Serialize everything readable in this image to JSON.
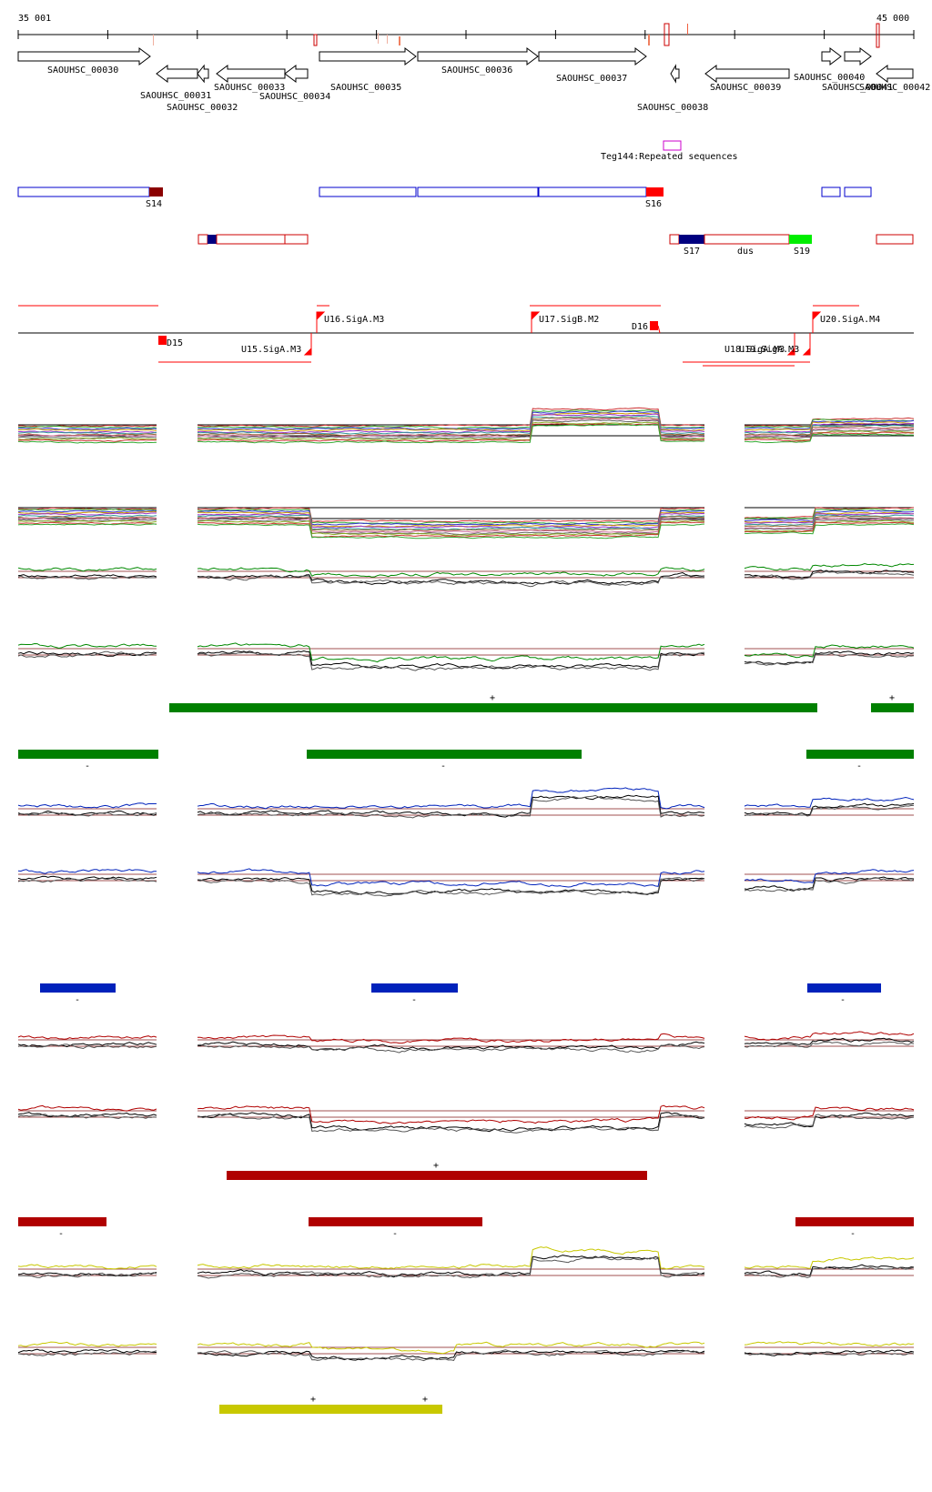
{
  "ruler": {
    "start_label": "35 001",
    "end_label": "45 000"
  },
  "genes": [
    {
      "id": "SAOUHSC_00030",
      "strand": "+"
    },
    {
      "id": "SAOUHSC_00031",
      "strand": "-"
    },
    {
      "id": "SAOUHSC_00032",
      "strand": "-"
    },
    {
      "id": "SAOUHSC_00033",
      "strand": "-"
    },
    {
      "id": "SAOUHSC_00034",
      "strand": "-"
    },
    {
      "id": "SAOUHSC_00035",
      "strand": "+"
    },
    {
      "id": "SAOUHSC_00036",
      "strand": "+"
    },
    {
      "id": "SAOUHSC_00037",
      "strand": "+"
    },
    {
      "id": "SAOUHSC_00038",
      "strand": "-"
    },
    {
      "id": "SAOUHSC_00039",
      "strand": "-"
    },
    {
      "id": "SAOUHSC_00040",
      "strand": "+"
    },
    {
      "id": "SAOUHSC_00041",
      "strand": "+"
    },
    {
      "id": "SAOUHSC_00042",
      "strand": "-"
    }
  ],
  "repeat_feature": {
    "label": "Teg144:Repeated sequences",
    "color": "#cc00cc"
  },
  "segments_plus": [
    {
      "label": "S14",
      "color": "#8b0000"
    },
    {
      "label": "S16",
      "color": "#ff0000"
    }
  ],
  "segments_minus": [
    {
      "label": "S17",
      "color": "#000080"
    },
    {
      "label": "dus",
      "color": "#cc0000"
    },
    {
      "label": "S19",
      "color": "#00ee00"
    }
  ],
  "promoters": [
    {
      "label": "D15"
    },
    {
      "label": "U15.SigA.M3"
    },
    {
      "label": "U16.SigA.M3"
    },
    {
      "label": "U17.SigB.M2"
    },
    {
      "label": "D16"
    },
    {
      "label": "U18.SigA.M3"
    },
    {
      "label": "U19.SigA.M3"
    },
    {
      "label": "U20.SigA.M4"
    }
  ],
  "condition_groups": [
    {
      "color": "#008000",
      "plus_marks": [
        "+",
        "+"
      ],
      "minus_marks": [
        "-",
        "-",
        "-"
      ]
    },
    {
      "color": "#0022bb",
      "plus_marks": [],
      "minus_marks": [
        "-",
        "-",
        "-"
      ]
    },
    {
      "color": "#b00000",
      "plus_marks": [
        "+"
      ],
      "minus_marks": [
        "-",
        "-",
        "-"
      ]
    },
    {
      "color": "#c8c800",
      "plus_marks": [
        "+",
        "+"
      ],
      "minus_marks": []
    }
  ]
}
